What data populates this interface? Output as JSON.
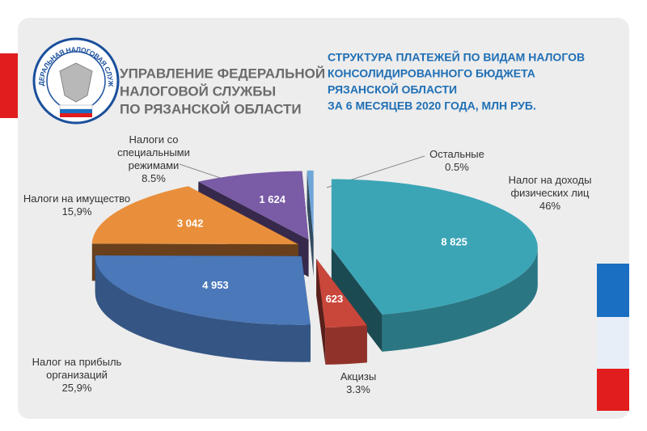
{
  "header": {
    "logo_text": "ФЕДЕРАЛЬНАЯ НАЛОГОВАЯ СЛУЖБА",
    "organization": [
      "УПРАВЛЕНИЕ ФЕДЕРАЛЬНОЙ",
      "НАЛОГОВОЙ СЛУЖБЫ",
      "ПО РЯЗАНСКОЙ ОБЛАСТИ"
    ]
  },
  "chart_data": {
    "type": "pie3d",
    "title": [
      "СТРУКТУРА ПЛАТЕЖЕЙ ПО ВИДАМ НАЛОГОВ",
      "КОНСОЛИДИРОВАННОГО БЮДЖЕТА",
      "РЯЗАНСКОЙ ОБЛАСТИ",
      "ЗА 6 МЕСЯЦЕВ 2020 ГОДА, МЛН РУБ."
    ],
    "categories": [
      "Налог на доходы физических лиц",
      "Акцизы",
      "Налог на прибыль организаций",
      "Налоги на имущество",
      "Налоги со специальными режимами",
      "Остальные"
    ],
    "values": [
      8825,
      623,
      4953,
      3042,
      1624,
      96
    ],
    "value_labels": [
      "8 825",
      "623",
      "4 953",
      "3 042",
      "1 624",
      null
    ],
    "percents": [
      46,
      3.3,
      25.9,
      15.9,
      8.5,
      0.5
    ],
    "percent_labels": [
      "46%",
      "3.3%",
      "25,9%",
      "15,9%",
      "8.5%",
      "0.5%"
    ],
    "colors": [
      "#3ba5b6",
      "#c9463b",
      "#4a78b9",
      "#e98f3c",
      "#7a5ba6",
      "#6fa6d8"
    ]
  }
}
